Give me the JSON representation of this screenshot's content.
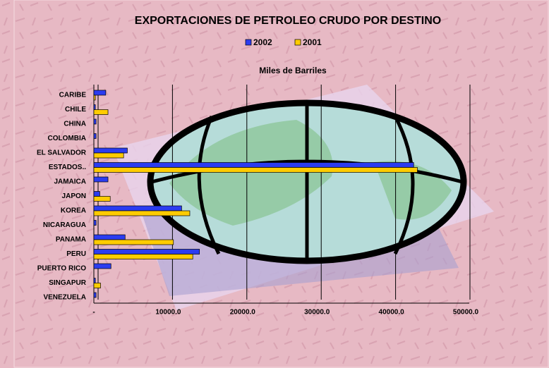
{
  "chart_data": {
    "type": "bar",
    "orientation": "horizontal",
    "title": "EXPORTACIONES DE PETROLEO CRUDO POR DESTINO",
    "x_label": "Miles de Barriles",
    "categories": [
      "CARIBE",
      "CHILE",
      "CHINA",
      "COLOMBIA",
      "EL SALVADOR",
      "ESTADOS..",
      "JAMAICA",
      "JAPON",
      "KOREA",
      "NICARAGUA",
      "PANAMA",
      "PERU",
      "PUERTO RICO",
      "SINGAPUR",
      "VENEZUELA"
    ],
    "series": [
      {
        "name": "2002",
        "color": "#2b3cf0",
        "values": [
          1600,
          200,
          300,
          300,
          4500,
          43000,
          1900,
          800,
          11800,
          300,
          4200,
          14200,
          2300,
          200,
          300
        ]
      },
      {
        "name": "2001",
        "color": "#ffcc00",
        "values": [
          200,
          1900,
          0,
          0,
          4000,
          43500,
          0,
          2200,
          12900,
          0,
          10700,
          13300,
          0,
          900,
          0
        ]
      }
    ],
    "xlim": [
      0,
      50000
    ],
    "xticks": [
      {
        "value": 0,
        "label": "-"
      },
      {
        "value": 10000,
        "label": "10000.0"
      },
      {
        "value": 20000,
        "label": "20000.0"
      },
      {
        "value": 30000,
        "label": "30000.0"
      },
      {
        "value": 40000,
        "label": "40000.0"
      },
      {
        "value": 50000,
        "label": "50000.0"
      }
    ],
    "grid": true,
    "legend": "top"
  }
}
